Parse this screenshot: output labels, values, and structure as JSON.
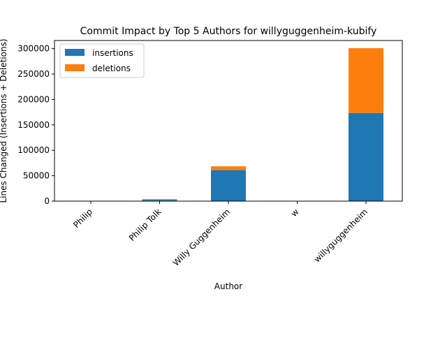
{
  "chart_data": {
    "type": "bar",
    "stacked": true,
    "title": "Commit Impact by Top 5 Authors for willyguggenheim-kubify",
    "xlabel": "Author",
    "ylabel": "Lines Changed (Insertions + Deletions)",
    "categories": [
      "Philip",
      "Philip Tolk",
      "Willy Guggenheim",
      "w",
      "willyguggenheim"
    ],
    "series": [
      {
        "name": "insertions",
        "color": "#1f77b4",
        "values": [
          0,
          2500,
          61000,
          0,
          173500
        ]
      },
      {
        "name": "deletions",
        "color": "#ff7f0e",
        "values": [
          0,
          1500,
          7500,
          0,
          127500
        ]
      }
    ],
    "ylim": [
      0,
      316000
    ],
    "yticks": [
      0,
      50000,
      100000,
      150000,
      200000,
      250000,
      300000
    ],
    "ytick_labels": [
      "0",
      "50000",
      "100000",
      "150000",
      "200000",
      "250000",
      "300000"
    ],
    "legend_position": "top-left",
    "grid": false
  }
}
